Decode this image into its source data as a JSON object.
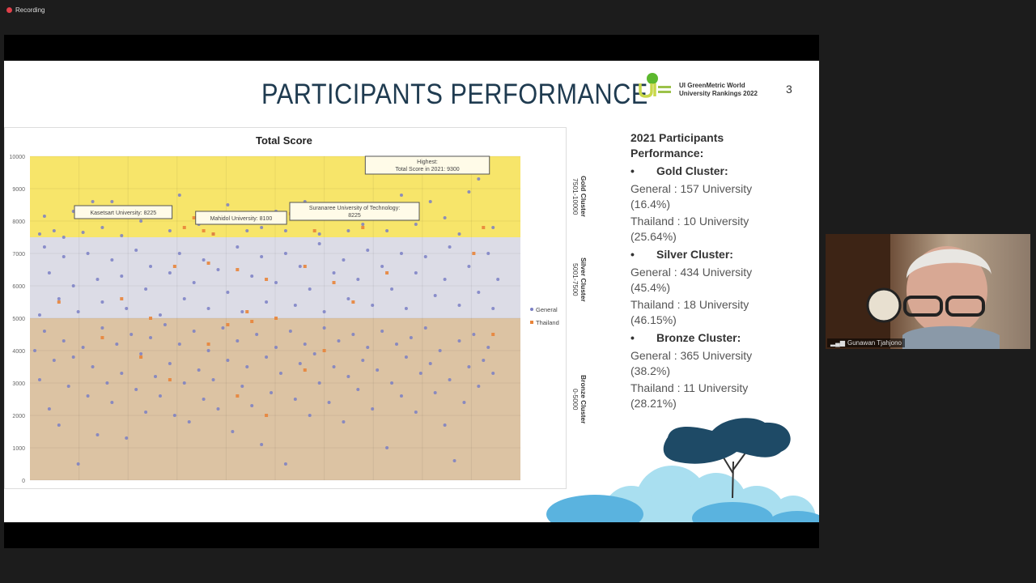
{
  "recording": {
    "label": "Recording",
    "icon": "record-icon"
  },
  "slide": {
    "title": "PARTICIPANTS PERFORMANCE",
    "logo_text": [
      "UI GreenMetric World",
      "University Rankings 2022"
    ],
    "page_number": "3",
    "panel": {
      "heading": "2021 Participants Performance:",
      "clusters": [
        {
          "name": "Gold Cluster:",
          "general": "General : 157 University (16.4%)",
          "thailand": "Thailand  : 10 University (25.64%)"
        },
        {
          "name": "Silver Cluster:",
          "general": "General : 434 University (45.4%)",
          "thailand": "Thailand : 18 University (46.15%)"
        },
        {
          "name": "Bronze Cluster:",
          "general": "General : 365 University (38.2%)",
          "thailand": "Thailand : 11 University (28.21%)"
        }
      ]
    }
  },
  "chart_data": {
    "type": "scatter",
    "title": "Total Score",
    "ylim": [
      0,
      10000
    ],
    "yticks": [
      "0",
      "1000",
      "2000",
      "3000",
      "4000",
      "5000",
      "6000",
      "7000",
      "8000",
      "9000",
      "10000"
    ],
    "grid": true,
    "legend_position": "right",
    "bands": [
      {
        "label": "Gold Cluster",
        "range_label": "7501-10000",
        "from": 7500,
        "to": 10000,
        "color": "#f7e56a"
      },
      {
        "label": "Silver Cluster",
        "range_label": "5001-7500",
        "from": 5000,
        "to": 7500,
        "color": "#dcdce6"
      },
      {
        "label": "Bronze Cluster",
        "range_label": "0-5000",
        "from": 0,
        "to": 5000,
        "color": "#dcc3a3"
      }
    ],
    "annotations": [
      {
        "text": "Kasetsart University: 8225",
        "x": 19,
        "y": 8225
      },
      {
        "text": "Mahidol University: 8100",
        "x": 32,
        "y": 8100
      },
      {
        "text": "Suranaree University of Technology: 8225",
        "x": 53,
        "y": 8225
      },
      {
        "text": "Highest: Total Score in 2021: 9300",
        "x": 92,
        "y": 9300
      }
    ],
    "series": [
      {
        "name": "General",
        "color": "#7a7fc4",
        "points": [
          [
            1,
            7600
          ],
          [
            2,
            8150
          ],
          [
            4,
            7700
          ],
          [
            6,
            7500
          ],
          [
            8,
            8300
          ],
          [
            10,
            7650
          ],
          [
            12,
            8600
          ],
          [
            14,
            7800
          ],
          [
            16,
            8600
          ],
          [
            18,
            7550
          ],
          [
            22,
            8000
          ],
          [
            25,
            8400
          ],
          [
            28,
            7700
          ],
          [
            30,
            8800
          ],
          [
            34,
            7900
          ],
          [
            37,
            7600
          ],
          [
            40,
            8500
          ],
          [
            44,
            7700
          ],
          [
            47,
            7800
          ],
          [
            50,
            8300
          ],
          [
            52,
            7700
          ],
          [
            56,
            8600
          ],
          [
            59,
            7600
          ],
          [
            62,
            8200
          ],
          [
            65,
            7700
          ],
          [
            68,
            7900
          ],
          [
            70,
            8500
          ],
          [
            73,
            7700
          ],
          [
            76,
            8800
          ],
          [
            79,
            7900
          ],
          [
            82,
            8600
          ],
          [
            85,
            8100
          ],
          [
            88,
            7600
          ],
          [
            90,
            8900
          ],
          [
            92,
            9300
          ],
          [
            95,
            7800
          ],
          [
            1,
            5100
          ],
          [
            2,
            7200
          ],
          [
            3,
            6400
          ],
          [
            5,
            5600
          ],
          [
            6,
            6900
          ],
          [
            8,
            6000
          ],
          [
            9,
            5200
          ],
          [
            11,
            7000
          ],
          [
            13,
            6200
          ],
          [
            14,
            5500
          ],
          [
            16,
            6800
          ],
          [
            18,
            6300
          ],
          [
            19,
            5300
          ],
          [
            21,
            7100
          ],
          [
            23,
            5900
          ],
          [
            24,
            6600
          ],
          [
            26,
            5100
          ],
          [
            28,
            6400
          ],
          [
            30,
            7000
          ],
          [
            31,
            5600
          ],
          [
            33,
            6100
          ],
          [
            35,
            6800
          ],
          [
            36,
            5300
          ],
          [
            38,
            6500
          ],
          [
            40,
            5800
          ],
          [
            42,
            7200
          ],
          [
            43,
            5200
          ],
          [
            45,
            6300
          ],
          [
            47,
            6900
          ],
          [
            48,
            5500
          ],
          [
            50,
            6100
          ],
          [
            52,
            7000
          ],
          [
            54,
            5400
          ],
          [
            55,
            6600
          ],
          [
            57,
            5900
          ],
          [
            59,
            7300
          ],
          [
            60,
            5200
          ],
          [
            62,
            6400
          ],
          [
            64,
            6800
          ],
          [
            65,
            5600
          ],
          [
            67,
            6200
          ],
          [
            69,
            7100
          ],
          [
            70,
            5400
          ],
          [
            72,
            6600
          ],
          [
            74,
            5900
          ],
          [
            76,
            7000
          ],
          [
            77,
            5300
          ],
          [
            79,
            6400
          ],
          [
            81,
            6900
          ],
          [
            83,
            5700
          ],
          [
            85,
            6200
          ],
          [
            86,
            7200
          ],
          [
            88,
            5400
          ],
          [
            90,
            6600
          ],
          [
            92,
            5800
          ],
          [
            94,
            7000
          ],
          [
            95,
            5300
          ],
          [
            96,
            6200
          ],
          [
            0,
            4000
          ],
          [
            1,
            3100
          ],
          [
            2,
            4600
          ],
          [
            3,
            2200
          ],
          [
            4,
            3700
          ],
          [
            5,
            1700
          ],
          [
            6,
            4300
          ],
          [
            7,
            2900
          ],
          [
            8,
            3800
          ],
          [
            9,
            500
          ],
          [
            10,
            4100
          ],
          [
            11,
            2600
          ],
          [
            12,
            3500
          ],
          [
            13,
            1400
          ],
          [
            14,
            4700
          ],
          [
            15,
            3000
          ],
          [
            16,
            2400
          ],
          [
            17,
            4200
          ],
          [
            18,
            3300
          ],
          [
            19,
            1300
          ],
          [
            20,
            4500
          ],
          [
            21,
            2800
          ],
          [
            22,
            3900
          ],
          [
            23,
            2100
          ],
          [
            24,
            4400
          ],
          [
            25,
            3200
          ],
          [
            26,
            2600
          ],
          [
            27,
            4800
          ],
          [
            28,
            3600
          ],
          [
            29,
            2000
          ],
          [
            30,
            4200
          ],
          [
            31,
            3000
          ],
          [
            32,
            1800
          ],
          [
            33,
            4600
          ],
          [
            34,
            3400
          ],
          [
            35,
            2500
          ],
          [
            36,
            4000
          ],
          [
            37,
            3100
          ],
          [
            38,
            2200
          ],
          [
            39,
            4700
          ],
          [
            40,
            3700
          ],
          [
            41,
            1500
          ],
          [
            42,
            4300
          ],
          [
            43,
            2900
          ],
          [
            44,
            3500
          ],
          [
            45,
            2300
          ],
          [
            46,
            4500
          ],
          [
            47,
            1100
          ],
          [
            48,
            3800
          ],
          [
            49,
            2700
          ],
          [
            50,
            4100
          ],
          [
            51,
            3300
          ],
          [
            52,
            500
          ],
          [
            53,
            4600
          ],
          [
            54,
            2500
          ],
          [
            55,
            3600
          ],
          [
            56,
            4200
          ],
          [
            57,
            2000
          ],
          [
            58,
            3900
          ],
          [
            59,
            3000
          ],
          [
            60,
            4700
          ],
          [
            61,
            2400
          ],
          [
            62,
            3500
          ],
          [
            63,
            4300
          ],
          [
            64,
            1800
          ],
          [
            65,
            3200
          ],
          [
            66,
            4500
          ],
          [
            67,
            2800
          ],
          [
            68,
            3700
          ],
          [
            69,
            4100
          ],
          [
            70,
            2200
          ],
          [
            71,
            3400
          ],
          [
            72,
            4600
          ],
          [
            73,
            1000
          ],
          [
            74,
            3000
          ],
          [
            75,
            4200
          ],
          [
            76,
            2600
          ],
          [
            77,
            3800
          ],
          [
            78,
            4400
          ],
          [
            79,
            2100
          ],
          [
            80,
            3300
          ],
          [
            81,
            4700
          ],
          [
            82,
            3600
          ],
          [
            83,
            2700
          ],
          [
            84,
            4000
          ],
          [
            85,
            1700
          ],
          [
            86,
            3100
          ],
          [
            87,
            600
          ],
          [
            88,
            4300
          ],
          [
            89,
            2400
          ],
          [
            90,
            3500
          ],
          [
            91,
            4500
          ],
          [
            92,
            2900
          ],
          [
            93,
            3700
          ],
          [
            94,
            4100
          ],
          [
            95,
            3300
          ]
        ]
      },
      {
        "name": "Thailand",
        "color": "#e8843a",
        "points": [
          [
            28,
            8225
          ],
          [
            31,
            7800
          ],
          [
            33,
            8100
          ],
          [
            35,
            7700
          ],
          [
            37,
            7600
          ],
          [
            53,
            8225
          ],
          [
            58,
            7700
          ],
          [
            68,
            7800
          ],
          [
            93,
            7800
          ],
          [
            29,
            6600
          ],
          [
            36,
            6700
          ],
          [
            42,
            6500
          ],
          [
            48,
            6200
          ],
          [
            56,
            6600
          ],
          [
            62,
            6100
          ],
          [
            66,
            5500
          ],
          [
            73,
            6400
          ],
          [
            91,
            7000
          ],
          [
            5,
            5500
          ],
          [
            40,
            4800
          ],
          [
            18,
            5600
          ],
          [
            24,
            5000
          ],
          [
            44,
            5200
          ],
          [
            50,
            5000
          ],
          [
            14,
            4400
          ],
          [
            22,
            3800
          ],
          [
            28,
            3100
          ],
          [
            36,
            4200
          ],
          [
            42,
            2600
          ],
          [
            45,
            4900
          ],
          [
            48,
            2000
          ],
          [
            56,
            3400
          ],
          [
            60,
            4000
          ],
          [
            95,
            4500
          ]
        ]
      }
    ]
  },
  "video": {
    "participant_name": "Gunawan Tjahjono",
    "signal_icon": "signal-bars-icon"
  }
}
